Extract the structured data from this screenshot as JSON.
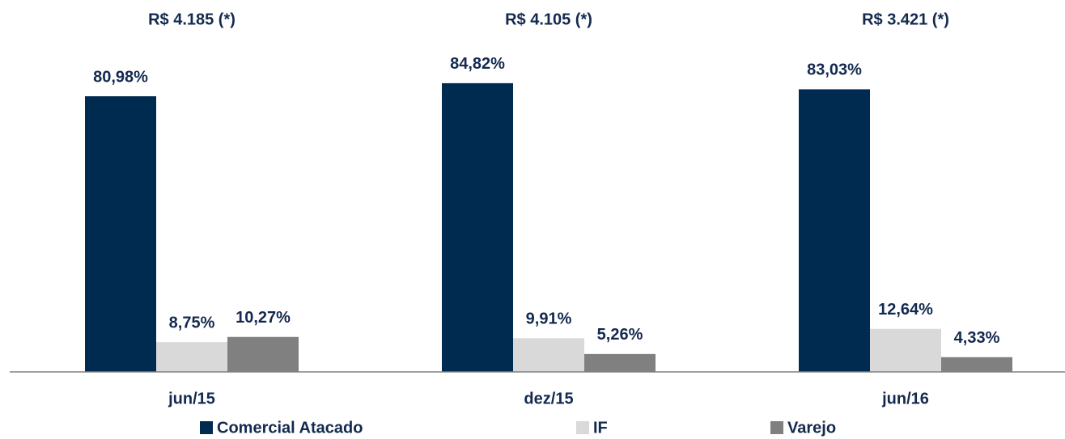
{
  "chart_data": {
    "type": "bar",
    "categories": [
      "jun/15",
      "dez/15",
      "jun/16"
    ],
    "annotations": [
      "R$ 4.185 (*)",
      "R$ 4.105 (*)",
      "R$ 3.421 (*)"
    ],
    "series": [
      {
        "name": "Comercial Atacado",
        "color": "#002b50",
        "values": [
          80.98,
          84.82,
          83.03
        ],
        "value_labels": [
          "80,98%",
          "84,82%",
          "83,03%"
        ]
      },
      {
        "name": "IF",
        "color": "#d9d9d9",
        "values": [
          8.75,
          9.91,
          12.64
        ],
        "value_labels": [
          "8,75%",
          "9,91%",
          "12,64%"
        ]
      },
      {
        "name": "Varejo",
        "color": "#808080",
        "values": [
          10.27,
          5.26,
          4.33
        ],
        "value_labels": [
          "10,27%",
          "5,26%",
          "4,33%"
        ]
      }
    ],
    "legend": "bottom"
  }
}
